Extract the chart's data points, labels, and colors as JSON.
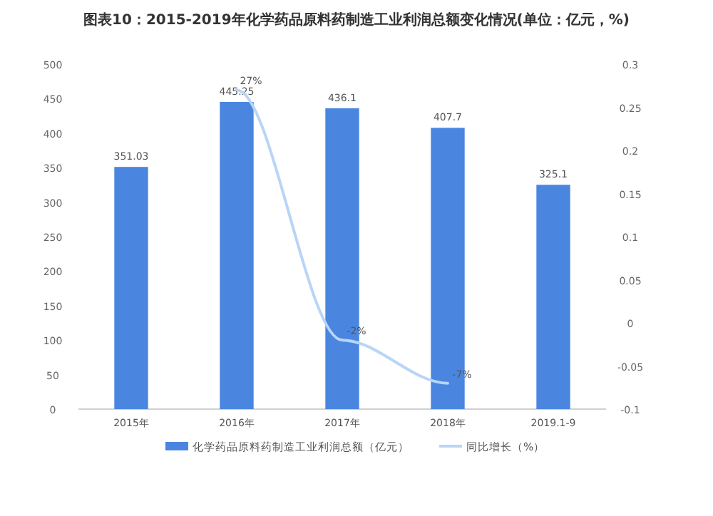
{
  "chart_data": {
    "type": "bar",
    "title": "图表10：2015-2019年化学药品原料药制造工业利润总额变化情况(单位：亿元，%)",
    "categories": [
      "2015年",
      "2016年",
      "2017年",
      "2018年",
      "2019.1-9"
    ],
    "series": [
      {
        "name": "化学药品原料药制造工业利润总额（亿元）",
        "color": "#4a86e0",
        "values": [
          351.03,
          445.25,
          436.1,
          407.7,
          325.1
        ],
        "value_labels": [
          "351.03",
          "445.25",
          "436.1",
          "407.7",
          "325.1"
        ]
      },
      {
        "name": "同比增长（%）",
        "type": "line",
        "axis": "y2",
        "color": "#b9d5f6",
        "values": [
          null,
          0.27,
          -0.02,
          -0.07,
          null
        ],
        "value_labels": [
          null,
          "27%",
          "-2%",
          "-7%",
          null
        ]
      }
    ],
    "ylim": [
      0,
      500
    ],
    "yticks": [
      0,
      50,
      100,
      150,
      200,
      250,
      300,
      350,
      400,
      450,
      500
    ],
    "y2lim": [
      -0.1,
      0.3
    ],
    "y2ticks": [
      -0.1,
      -0.05,
      0,
      0.05,
      0.1,
      0.15,
      0.2,
      0.25,
      0.3
    ],
    "legend": "bottom"
  }
}
